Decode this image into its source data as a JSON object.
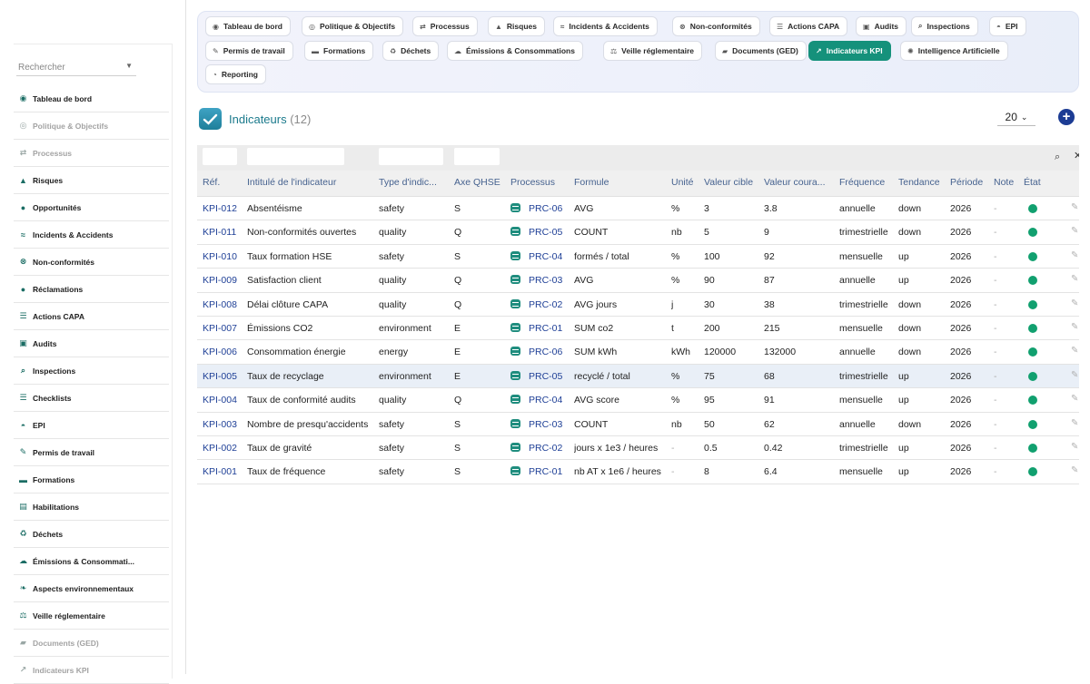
{
  "sidebar": {
    "search_placeholder": "Rechercher",
    "items": [
      {
        "label": "Tableau de bord",
        "icon": "dashboard-icon",
        "glyph": "◉",
        "muted": false
      },
      {
        "label": "Politique & Objectifs",
        "icon": "target-icon",
        "glyph": "◎",
        "muted": true
      },
      {
        "label": "Processus",
        "icon": "process-icon",
        "glyph": "⇄",
        "muted": true
      },
      {
        "label": "Risques",
        "icon": "warning-icon",
        "glyph": "▲",
        "muted": false
      },
      {
        "label": "Opportunités",
        "icon": "bulb-icon",
        "glyph": "●",
        "muted": false
      },
      {
        "label": "Incidents & Accidents",
        "icon": "handshake-icon",
        "glyph": "≈",
        "muted": false
      },
      {
        "label": "Non-conformités",
        "icon": "close-circle-icon",
        "glyph": "⊗",
        "muted": false
      },
      {
        "label": "Réclamations",
        "icon": "comment-icon",
        "glyph": "●",
        "muted": false
      },
      {
        "label": "Actions CAPA",
        "icon": "list-icon",
        "glyph": "☰",
        "muted": false
      },
      {
        "label": "Audits",
        "icon": "clipboard-icon",
        "glyph": "▣",
        "muted": false
      },
      {
        "label": "Inspections",
        "icon": "search-icon",
        "glyph": "⌕",
        "muted": false
      },
      {
        "label": "Checklists",
        "icon": "list-check-icon",
        "glyph": "☰",
        "muted": false
      },
      {
        "label": "EPI",
        "icon": "helmet-icon",
        "glyph": "◓",
        "muted": false
      },
      {
        "label": "Permis de travail",
        "icon": "file-signature-icon",
        "glyph": "✎",
        "muted": false
      },
      {
        "label": "Formations",
        "icon": "graduation-icon",
        "glyph": "▬",
        "muted": false
      },
      {
        "label": "Habilitations",
        "icon": "id-badge-icon",
        "glyph": "▤",
        "muted": false
      },
      {
        "label": "Déchets",
        "icon": "recycle-icon",
        "glyph": "♻",
        "muted": false
      },
      {
        "label": "Émissions & Consommati...",
        "icon": "cloud-icon",
        "glyph": "☁",
        "muted": false
      },
      {
        "label": "Aspects environnementaux",
        "icon": "leaf-icon",
        "glyph": "❧",
        "muted": false
      },
      {
        "label": "Veille réglementaire",
        "icon": "scale-icon",
        "glyph": "⚖",
        "muted": false
      },
      {
        "label": "Documents (GED)",
        "icon": "folder-icon",
        "glyph": "▰",
        "muted": true
      },
      {
        "label": "Indicateurs KPI",
        "icon": "chart-icon",
        "glyph": "↗",
        "muted": true
      }
    ]
  },
  "topnav": {
    "items": [
      {
        "label": "Tableau de bord",
        "icon": "dashboard-icon",
        "glyph": "◉",
        "active": false
      },
      {
        "label": "Politique & Objectifs",
        "icon": "target-icon",
        "glyph": "◎",
        "active": false
      },
      {
        "label": "Processus",
        "icon": "process-icon",
        "glyph": "⇄",
        "active": false
      },
      {
        "label": "Risques",
        "icon": "warning-icon",
        "glyph": "▲",
        "active": false
      },
      {
        "label": "Incidents & Accidents",
        "icon": "handshake-icon",
        "glyph": "≈",
        "active": false
      },
      {
        "label": "Non-conformités",
        "icon": "close-circle-icon",
        "glyph": "⊗",
        "active": false
      },
      {
        "label": "Actions CAPA",
        "icon": "list-icon",
        "glyph": "☰",
        "active": false
      },
      {
        "label": "Audits",
        "icon": "clipboard-icon",
        "glyph": "▣",
        "active": false
      },
      {
        "label": "Inspections",
        "icon": "search-icon",
        "glyph": "⌕",
        "active": false
      },
      {
        "label": "EPI",
        "icon": "helmet-icon",
        "glyph": "◓",
        "active": false
      },
      {
        "label": "Permis de travail",
        "icon": "file-signature-icon",
        "glyph": "✎",
        "active": false
      },
      {
        "label": "Formations",
        "icon": "graduation-icon",
        "glyph": "▬",
        "active": false
      },
      {
        "label": "Déchets",
        "icon": "recycle-icon",
        "glyph": "♻",
        "active": false
      },
      {
        "label": "Émissions & Consommations",
        "icon": "cloud-icon",
        "glyph": "☁",
        "active": false
      },
      {
        "label": "Veille réglementaire",
        "icon": "scale-icon",
        "glyph": "⚖",
        "active": false
      },
      {
        "label": "Documents (GED)",
        "icon": "folder-icon",
        "glyph": "▰",
        "active": false
      },
      {
        "label": "Indicateurs KPI",
        "icon": "chart-icon",
        "glyph": "↗",
        "active": true
      },
      {
        "label": "Intelligence Artificielle",
        "icon": "brain-icon",
        "glyph": "✺",
        "active": false
      },
      {
        "label": "Reporting",
        "icon": "pie-chart-icon",
        "glyph": "◔",
        "active": false
      }
    ]
  },
  "page": {
    "title": "Indicateurs",
    "count": "(12)",
    "per_page": "20",
    "add_icon": "plus-circle-icon"
  },
  "table": {
    "columns": [
      "Réf.",
      "Intitulé de l'indicateur",
      "Type d'indic...",
      "Axe QHSE",
      "Processus",
      "Formule",
      "Unité",
      "Valeur cible",
      "Valeur coura...",
      "Fréquence",
      "Tendance",
      "Période",
      "Note",
      "État"
    ],
    "rows": [
      {
        "ref": "KPI-012",
        "name": "Absentéisme",
        "type": "safety",
        "axe": "S",
        "proc": "PRC-06",
        "formula": "AVG",
        "unit": "%",
        "target": "3",
        "current": "3.8",
        "freq": "annuelle",
        "trend": "down",
        "period": "2026",
        "note": "-",
        "status": "green"
      },
      {
        "ref": "KPI-011",
        "name": "Non-conformités ouvertes",
        "type": "quality",
        "axe": "Q",
        "proc": "PRC-05",
        "formula": "COUNT",
        "unit": "nb",
        "target": "5",
        "current": "9",
        "freq": "trimestrielle",
        "trend": "down",
        "period": "2026",
        "note": "-",
        "status": "green"
      },
      {
        "ref": "KPI-010",
        "name": "Taux formation HSE",
        "type": "safety",
        "axe": "S",
        "proc": "PRC-04",
        "formula": "formés / total",
        "unit": "%",
        "target": "100",
        "current": "92",
        "freq": "mensuelle",
        "trend": "up",
        "period": "2026",
        "note": "-",
        "status": "green"
      },
      {
        "ref": "KPI-009",
        "name": "Satisfaction client",
        "type": "quality",
        "axe": "Q",
        "proc": "PRC-03",
        "formula": "AVG",
        "unit": "%",
        "target": "90",
        "current": "87",
        "freq": "annuelle",
        "trend": "up",
        "period": "2026",
        "note": "-",
        "status": "green"
      },
      {
        "ref": "KPI-008",
        "name": "Délai clôture CAPA",
        "type": "quality",
        "axe": "Q",
        "proc": "PRC-02",
        "formula": "AVG jours",
        "unit": "j",
        "target": "30",
        "current": "38",
        "freq": "trimestrielle",
        "trend": "down",
        "period": "2026",
        "note": "-",
        "status": "green"
      },
      {
        "ref": "KPI-007",
        "name": "Émissions CO2",
        "type": "environment",
        "axe": "E",
        "proc": "PRC-01",
        "formula": "SUM co2",
        "unit": "t",
        "target": "200",
        "current": "215",
        "freq": "mensuelle",
        "trend": "down",
        "period": "2026",
        "note": "-",
        "status": "green"
      },
      {
        "ref": "KPI-006",
        "name": "Consommation énergie",
        "type": "energy",
        "axe": "E",
        "proc": "PRC-06",
        "formula": "SUM kWh",
        "unit": "kWh",
        "target": "120000",
        "current": "132000",
        "freq": "annuelle",
        "trend": "down",
        "period": "2026",
        "note": "-",
        "status": "green"
      },
      {
        "ref": "KPI-005",
        "name": "Taux de recyclage",
        "type": "environment",
        "axe": "E",
        "proc": "PRC-05",
        "formula": "recyclé / total",
        "unit": "%",
        "target": "75",
        "current": "68",
        "freq": "trimestrielle",
        "trend": "up",
        "period": "2026",
        "note": "-",
        "status": "green",
        "highlight": true
      },
      {
        "ref": "KPI-004",
        "name": "Taux de conformité audits",
        "type": "quality",
        "axe": "Q",
        "proc": "PRC-04",
        "formula": "AVG score",
        "unit": "%",
        "target": "95",
        "current": "91",
        "freq": "mensuelle",
        "trend": "up",
        "period": "2026",
        "note": "-",
        "status": "green"
      },
      {
        "ref": "KPI-003",
        "name": "Nombre de presqu'accidents",
        "type": "safety",
        "axe": "S",
        "proc": "PRC-03",
        "formula": "COUNT",
        "unit": "nb",
        "target": "50",
        "current": "62",
        "freq": "annuelle",
        "trend": "down",
        "period": "2026",
        "note": "-",
        "status": "green"
      },
      {
        "ref": "KPI-002",
        "name": "Taux de gravité",
        "type": "safety",
        "axe": "S",
        "proc": "PRC-02",
        "formula": "jours x 1e3 / heures",
        "unit": "-",
        "target": "0.5",
        "current": "0.42",
        "freq": "trimestrielle",
        "trend": "up",
        "period": "2026",
        "note": "-",
        "status": "green"
      },
      {
        "ref": "KPI-001",
        "name": "Taux de fréquence",
        "type": "safety",
        "axe": "S",
        "proc": "PRC-01",
        "formula": "nb AT x 1e6 / heures",
        "unit": "-",
        "target": "8",
        "current": "6.4",
        "freq": "mensuelle",
        "trend": "up",
        "period": "2026",
        "note": "-",
        "status": "green"
      }
    ]
  },
  "colors": {
    "accent": "#15917b",
    "link": "#1e3f96",
    "status_green": "#11a06f",
    "add_button": "#1c3c94"
  }
}
